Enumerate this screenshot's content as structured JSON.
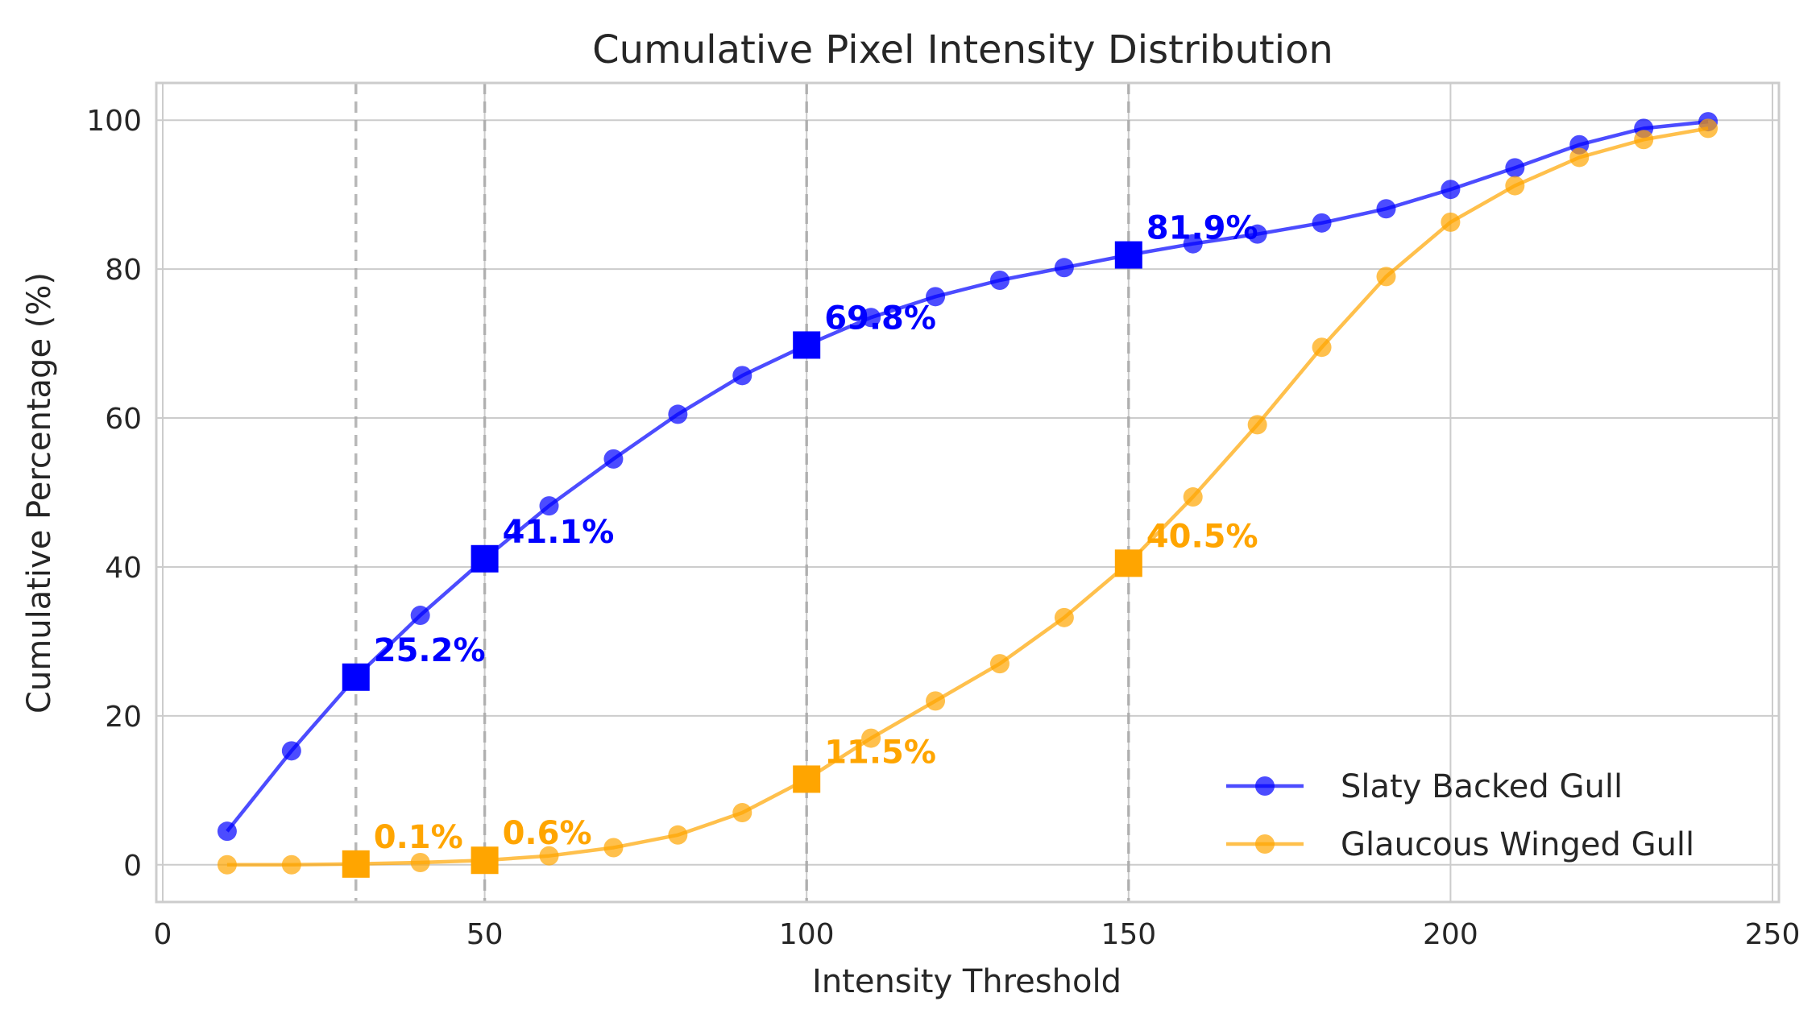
{
  "chart_data": {
    "type": "line",
    "title": "Cumulative Pixel Intensity Distribution",
    "xlabel": "Intensity Threshold",
    "ylabel": "Cumulative Percentage (%)",
    "xlim": [
      -1,
      251
    ],
    "ylim": [
      -5,
      105
    ],
    "xticks": [
      0,
      50,
      100,
      150,
      200,
      250
    ],
    "yticks": [
      0,
      20,
      40,
      60,
      80,
      100
    ],
    "grid": true,
    "legend_position": "lower-right",
    "reference_lines": [
      30,
      50,
      100,
      150
    ],
    "x": [
      10,
      20,
      30,
      40,
      50,
      60,
      70,
      80,
      90,
      100,
      110,
      120,
      130,
      140,
      150,
      160,
      170,
      180,
      190,
      200,
      210,
      220,
      230,
      240
    ],
    "series": [
      {
        "name": "Slaty Backed Gull",
        "color": "#0000ff",
        "values": [
          4.5,
          15.3,
          25.2,
          33.5,
          41.1,
          48.2,
          54.5,
          60.5,
          65.7,
          69.8,
          73.5,
          76.3,
          78.5,
          80.2,
          81.9,
          83.4,
          84.7,
          86.2,
          88.1,
          90.7,
          93.6,
          96.7,
          98.9,
          99.8
        ],
        "highlights": [
          {
            "x": 30,
            "y": 25.2,
            "label": "25.2%"
          },
          {
            "x": 50,
            "y": 41.1,
            "label": "41.1%"
          },
          {
            "x": 100,
            "y": 69.8,
            "label": "69.8%"
          },
          {
            "x": 150,
            "y": 81.9,
            "label": "81.9%"
          }
        ]
      },
      {
        "name": "Glaucous Winged Gull",
        "color": "#ffa500",
        "values": [
          0.0,
          0.0,
          0.1,
          0.3,
          0.6,
          1.2,
          2.3,
          4.0,
          7.0,
          11.5,
          17.0,
          22.0,
          27.0,
          33.2,
          40.5,
          49.4,
          59.1,
          69.5,
          79.0,
          86.3,
          91.2,
          95.0,
          97.4,
          98.9
        ],
        "highlights": [
          {
            "x": 30,
            "y": 0.1,
            "label": "0.1%"
          },
          {
            "x": 50,
            "y": 0.6,
            "label": "0.6%"
          },
          {
            "x": 100,
            "y": 11.5,
            "label": "11.5%"
          },
          {
            "x": 150,
            "y": 40.5,
            "label": "40.5%"
          }
        ]
      }
    ]
  }
}
